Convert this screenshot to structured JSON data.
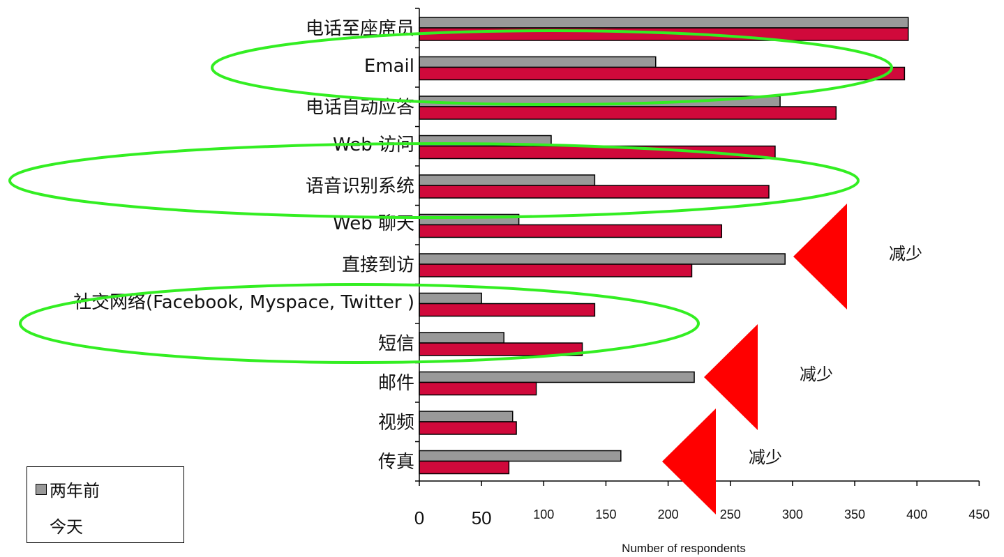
{
  "chart_data": {
    "type": "bar",
    "orientation": "horizontal",
    "title": "",
    "xlabel": "Number of respondents",
    "ylabel": "",
    "xlim": [
      0,
      450
    ],
    "x_ticks": [
      "0",
      "50",
      "100",
      "150",
      "200",
      "250",
      "300",
      "350",
      "400",
      "450"
    ],
    "categories": [
      "电话至座席员",
      "Email",
      "电话自动应答",
      "Web 访问",
      "语音识别系统",
      "Web  聊天",
      "直接到访",
      "社交网络(Facebook, Myspace, Twitter )",
      "短信",
      "邮件",
      "视频",
      "传真"
    ],
    "series": [
      {
        "name": "两年前",
        "color": "#999999",
        "values": [
          393,
          190,
          290,
          106,
          141,
          80,
          294,
          50,
          68,
          221,
          75,
          162
        ]
      },
      {
        "name": "今天",
        "color": "#d0093b",
        "values": [
          393,
          390,
          335,
          286,
          281,
          243,
          219,
          141,
          131,
          94,
          78,
          72
        ]
      }
    ],
    "grid": false,
    "legend_position": "bottom-left",
    "highlights": [
      {
        "type": "ellipse",
        "color": "#33ee22",
        "categories": [
          "Email"
        ]
      },
      {
        "type": "ellipse",
        "color": "#33ee22",
        "categories": [
          "Web 访问",
          "语音识别系统"
        ]
      },
      {
        "type": "ellipse",
        "color": "#33ee22",
        "categories": [
          "社交网络(Facebook, Myspace, Twitter )",
          "短信"
        ]
      }
    ],
    "annotations": [
      {
        "text": "减少",
        "category": "直接到访",
        "marker": "red-left-triangle",
        "color": "#ff0000"
      },
      {
        "text": "减少",
        "category": "邮件",
        "marker": "red-left-triangle",
        "color": "#ff0000"
      },
      {
        "text": "减少",
        "category": "传真",
        "marker": "red-left-triangle",
        "color": "#ff0000"
      }
    ]
  }
}
